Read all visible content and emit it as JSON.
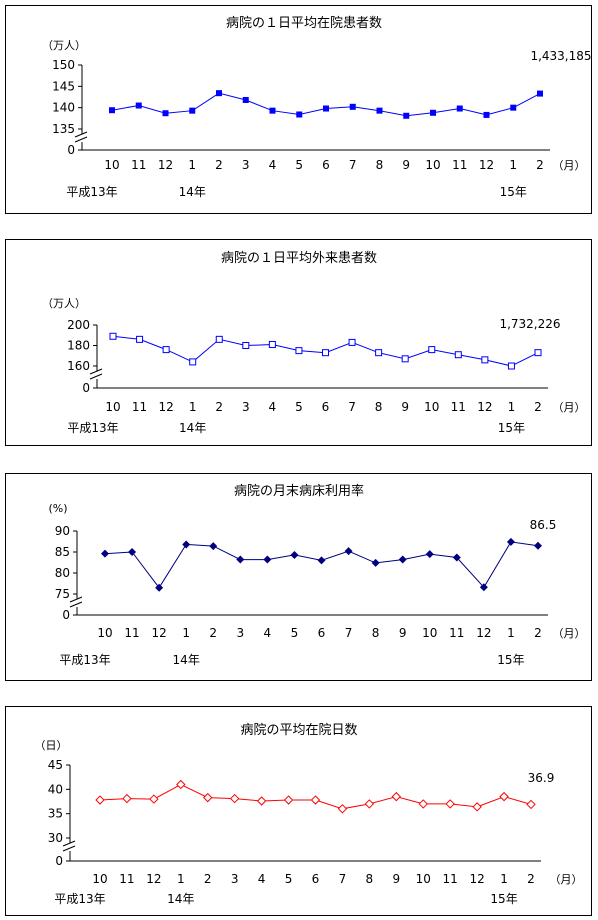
{
  "x_month_labels": [
    "10",
    "11",
    "12",
    "1",
    "2",
    "3",
    "4",
    "5",
    "6",
    "7",
    "8",
    "9",
    "10",
    "11",
    "12",
    "1",
    "2"
  ],
  "month_unit": "（月）",
  "year_labels": [
    {
      "index": 0,
      "text": "平成13年"
    },
    {
      "index": 3,
      "text": "14年"
    },
    {
      "index": 15,
      "text": "15年"
    }
  ],
  "chart_data": [
    {
      "type": "line",
      "title": "病院の１日平均在院患者数",
      "ylabel": "（万人）",
      "yticks": [
        135,
        140,
        145,
        150
      ],
      "ylim": [
        135,
        150
      ],
      "axis_break": true,
      "marker": "filled-square",
      "color": "#0000ff",
      "categories": [
        "10",
        "11",
        "12",
        "1",
        "2",
        "3",
        "4",
        "5",
        "6",
        "7",
        "8",
        "9",
        "10",
        "11",
        "12",
        "1",
        "2"
      ],
      "values": [
        139.4,
        140.5,
        138.7,
        139.3,
        143.4,
        141.8,
        139.3,
        138.4,
        139.8,
        140.2,
        139.3,
        138.1,
        138.8,
        139.8,
        138.3,
        140.0,
        143.3
      ],
      "end_label": "1,433,185"
    },
    {
      "type": "line",
      "title": "病院の１日平均外来患者数",
      "ylabel": "（万人）",
      "yticks": [
        160,
        180,
        200
      ],
      "ylim": [
        160,
        200
      ],
      "axis_break": true,
      "marker": "open-square",
      "color": "#0000ff",
      "categories": [
        "10",
        "11",
        "12",
        "1",
        "2",
        "3",
        "4",
        "5",
        "6",
        "7",
        "8",
        "9",
        "10",
        "11",
        "12",
        "1",
        "2"
      ],
      "values": [
        189,
        186,
        176,
        164,
        186,
        180,
        181,
        175,
        173,
        183,
        173,
        167,
        176,
        171,
        166,
        160,
        173
      ],
      "end_label": "1,732,226"
    },
    {
      "type": "line",
      "title": "病院の月末病床利用率",
      "ylabel": "(%)",
      "yticks": [
        75,
        80,
        85,
        90
      ],
      "ylim": [
        75,
        90
      ],
      "axis_break": true,
      "marker": "filled-diamond",
      "color": "#000080",
      "categories": [
        "10",
        "11",
        "12",
        "1",
        "2",
        "3",
        "4",
        "5",
        "6",
        "7",
        "8",
        "9",
        "10",
        "11",
        "12",
        "1",
        "2"
      ],
      "values": [
        84.6,
        85.0,
        76.5,
        86.8,
        86.4,
        83.2,
        83.2,
        84.3,
        83.0,
        85.2,
        82.4,
        83.2,
        84.5,
        83.7,
        76.6,
        87.4,
        86.5
      ],
      "end_label": "86.5"
    },
    {
      "type": "line",
      "title": "病院の平均在院日数",
      "ylabel": "（日）",
      "yticks": [
        30,
        35,
        40,
        45
      ],
      "ylim": [
        30,
        45
      ],
      "axis_break": true,
      "marker": "open-diamond",
      "color": "#ff0000",
      "categories": [
        "10",
        "11",
        "12",
        "1",
        "2",
        "3",
        "4",
        "5",
        "6",
        "7",
        "8",
        "9",
        "10",
        "11",
        "12",
        "1",
        "2"
      ],
      "values": [
        37.8,
        38.1,
        38.0,
        41.0,
        38.3,
        38.1,
        37.6,
        37.8,
        37.8,
        36.0,
        37.0,
        38.5,
        37.0,
        37.0,
        36.4,
        38.5,
        36.9
      ],
      "end_label": "36.9"
    }
  ]
}
